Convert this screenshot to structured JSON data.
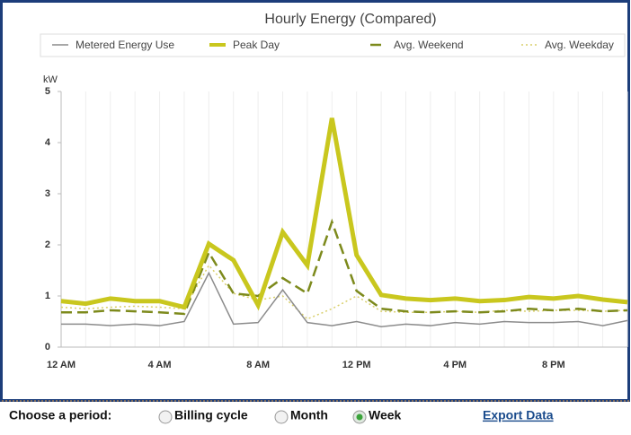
{
  "chart_data": {
    "type": "line",
    "title": "Hourly Energy (Compared)",
    "y_label": "kW",
    "categories": [
      "12 AM",
      null,
      null,
      null,
      "4 AM",
      null,
      null,
      null,
      "8 AM",
      null,
      null,
      null,
      "12 PM",
      null,
      null,
      null,
      "4 PM",
      null,
      null,
      null,
      "8 PM",
      null,
      null,
      null
    ],
    "ylim": [
      0,
      5
    ],
    "yticks": [
      0,
      1,
      2,
      3,
      4,
      5
    ],
    "grid": true,
    "series": [
      {
        "name": "Metered Energy Use",
        "color": "#8c8c8c",
        "width": 1.5,
        "dash": "solid",
        "values": [
          0.45,
          0.45,
          0.42,
          0.45,
          0.42,
          0.5,
          1.45,
          0.45,
          0.48,
          1.12,
          0.48,
          0.42,
          0.5,
          0.4,
          0.45,
          0.42,
          0.48,
          0.45,
          0.5,
          0.48,
          0.48,
          0.5,
          0.42,
          0.52
        ]
      },
      {
        "name": "Peak Day",
        "color": "#c9c71e",
        "width": 5,
        "dash": "solid",
        "values": [
          0.9,
          0.85,
          0.95,
          0.9,
          0.9,
          0.78,
          2.02,
          1.7,
          0.82,
          2.25,
          1.6,
          4.48,
          1.8,
          1.02,
          0.95,
          0.92,
          0.95,
          0.9,
          0.92,
          0.98,
          0.95,
          1.0,
          0.93,
          0.88
        ]
      },
      {
        "name": "Avg. Weekend",
        "color": "#7d8a1c",
        "width": 2.5,
        "dash": "dashed",
        "values": [
          0.68,
          0.68,
          0.72,
          0.7,
          0.68,
          0.65,
          1.85,
          1.05,
          1.0,
          1.35,
          1.05,
          2.45,
          1.1,
          0.75,
          0.7,
          0.68,
          0.7,
          0.68,
          0.7,
          0.75,
          0.72,
          0.75,
          0.7,
          0.72
        ]
      },
      {
        "name": "Avg. Weekday",
        "color": "#d9cf6a",
        "width": 1.5,
        "dash": "dotted",
        "values": [
          0.78,
          0.75,
          0.78,
          0.8,
          0.78,
          0.75,
          1.6,
          1.05,
          0.92,
          1.0,
          0.55,
          0.75,
          1.0,
          0.7,
          0.68,
          0.68,
          0.7,
          0.68,
          0.72,
          0.7,
          0.72,
          0.72,
          0.7,
          0.72
        ]
      }
    ]
  },
  "controls": {
    "label": "Choose a period:",
    "options": [
      {
        "label": "Billing cycle",
        "checked": false
      },
      {
        "label": "Month",
        "checked": false
      },
      {
        "label": "Week",
        "checked": true
      }
    ],
    "link": "Export Data"
  }
}
